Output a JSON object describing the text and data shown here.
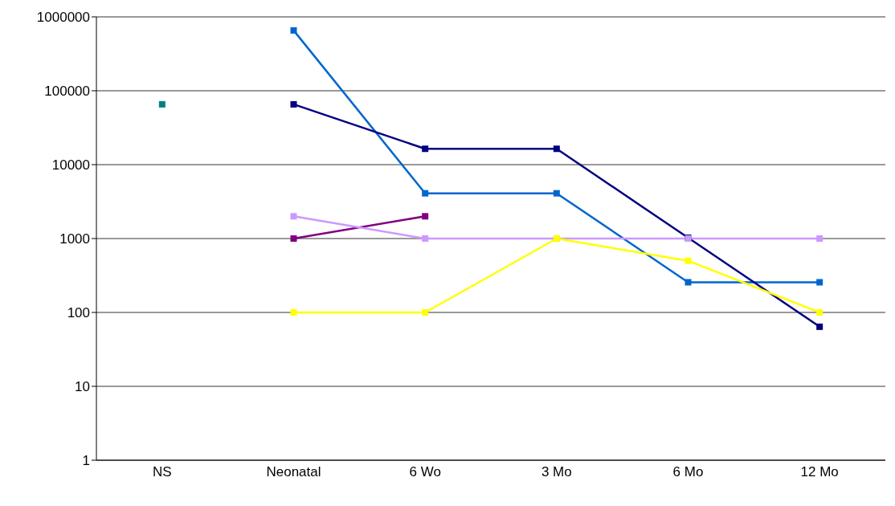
{
  "chart_data": {
    "type": "line",
    "categories": [
      "NS",
      "Neonatal",
      "6 Wo",
      "3 Mo",
      "6 Mo",
      "12 Mo"
    ],
    "series": [
      {
        "color": "#008080",
        "values": [
          65536,
          null,
          null,
          null,
          null,
          null
        ]
      },
      {
        "color": "#0066cc",
        "values": [
          null,
          655360,
          4096,
          4096,
          256,
          256
        ]
      },
      {
        "color": "#000080",
        "values": [
          null,
          65536,
          16384,
          16384,
          1024,
          64
        ]
      },
      {
        "color": "#800080",
        "values": [
          null,
          1000,
          2000,
          null,
          null,
          null
        ]
      },
      {
        "color": "#cc99ff",
        "values": [
          null,
          2000,
          1000,
          1000,
          1000,
          1000
        ]
      },
      {
        "color": "#ffff00",
        "values": [
          null,
          100,
          100,
          1000,
          500,
          100
        ]
      }
    ],
    "log": true,
    "ylim": [
      1,
      1000000
    ],
    "yticks": [
      1,
      10,
      100,
      1000,
      10000,
      100000,
      1000000
    ],
    "grid": "y",
    "legend": false,
    "marker": "square",
    "line_style": "solid"
  }
}
